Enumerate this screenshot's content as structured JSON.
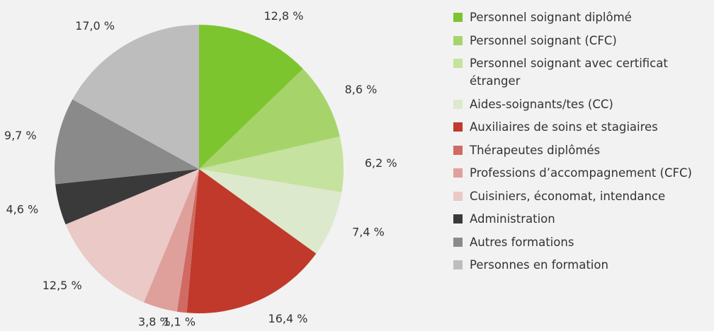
{
  "chart_data": {
    "type": "pie",
    "categories": [
      "Personnel soignant diplômé",
      "Personnel soignant (CFC)",
      "Personnel soignant avec certificat étranger",
      "Aides-soignants/tes (CC)",
      "Auxiliaires de soins et stagiaires",
      "Thérapeutes diplômés",
      "Professions d’accompagnement (CFC)",
      "Cuisiniers, économat, intendance",
      "Administration",
      "Autres formations",
      "Personnes en formation"
    ],
    "values": [
      12.8,
      8.6,
      6.2,
      7.4,
      16.4,
      1.1,
      3.8,
      12.5,
      4.6,
      9.7,
      17.0
    ],
    "value_labels": [
      "12,8 %",
      "8,6 %",
      "6,2 %",
      "7,4 %",
      "16,4 %",
      "1,1 %",
      "3,8 %",
      "12,5 %",
      "4,6 %",
      "9,7 %",
      "17,0 %"
    ],
    "colors": [
      "#7dc52e",
      "#a6d46a",
      "#c5e29e",
      "#dde9cc",
      "#c0392b",
      "#d06a63",
      "#dfa09c",
      "#ebc9c7",
      "#3a3a3a",
      "#8a8a8a",
      "#bdbdbd"
    ]
  }
}
